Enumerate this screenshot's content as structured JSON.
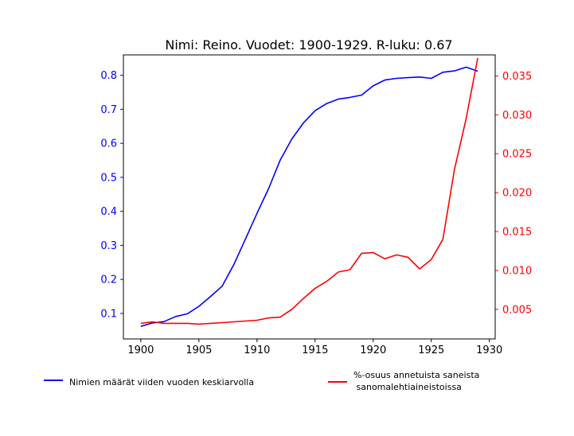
{
  "chart_data": {
    "type": "line",
    "title": "Nimi: Reino. Vuodet: 1900-1929. R-luku: 0.67",
    "xlim": [
      1898.5,
      1930.5
    ],
    "ylim_left": [
      0.025,
      0.86
    ],
    "ylim_right": [
      0.0012,
      0.0377
    ],
    "x_ticks": [
      1900,
      1905,
      1910,
      1915,
      1920,
      1925,
      1930
    ],
    "y_ticks_left": [
      0.1,
      0.2,
      0.3,
      0.4,
      0.5,
      0.6,
      0.7,
      0.8
    ],
    "y_ticks_right": [
      0.005,
      0.01,
      0.015,
      0.02,
      0.025,
      0.03,
      0.035
    ],
    "y_tick_labels_left": [
      "0.1",
      "0.2",
      "0.3",
      "0.4",
      "0.5",
      "0.6",
      "0.7",
      "0.8"
    ],
    "y_tick_labels_right": [
      "0.005",
      "0.010",
      "0.015",
      "0.020",
      "0.025",
      "0.030",
      "0.035"
    ],
    "x": [
      1900,
      1901,
      1902,
      1903,
      1904,
      1905,
      1906,
      1907,
      1908,
      1909,
      1910,
      1911,
      1912,
      1913,
      1914,
      1915,
      1916,
      1917,
      1918,
      1919,
      1920,
      1921,
      1922,
      1923,
      1924,
      1925,
      1926,
      1927,
      1928,
      1929
    ],
    "series": [
      {
        "name": "Nimien määrät viiden vuoden keskiarvolla",
        "axis": "left",
        "color": "#0000ff",
        "values": [
          0.062,
          0.072,
          0.076,
          0.091,
          0.099,
          0.121,
          0.15,
          0.18,
          0.243,
          0.318,
          0.394,
          0.467,
          0.551,
          0.613,
          0.66,
          0.696,
          0.717,
          0.73,
          0.735,
          0.742,
          0.769,
          0.786,
          0.791,
          0.793,
          0.795,
          0.791,
          0.809,
          0.813,
          0.824,
          0.812
        ]
      },
      {
        "name": "%-osuus annetuista saneista\n sanomalehtiaineistoissa",
        "axis": "right",
        "color": "#ff0000",
        "values": [
          0.0032,
          0.0034,
          0.0032,
          0.0032,
          0.0032,
          0.0031,
          0.0032,
          0.0033,
          0.0034,
          0.0035,
          0.0036,
          0.0039,
          0.004,
          0.005,
          0.0064,
          0.0077,
          0.0086,
          0.0098,
          0.0101,
          0.0122,
          0.0123,
          0.0115,
          0.012,
          0.0117,
          0.0102,
          0.0114,
          0.014,
          0.023,
          0.0295,
          0.0373
        ]
      }
    ],
    "legend": {
      "placement": "bottom"
    }
  }
}
